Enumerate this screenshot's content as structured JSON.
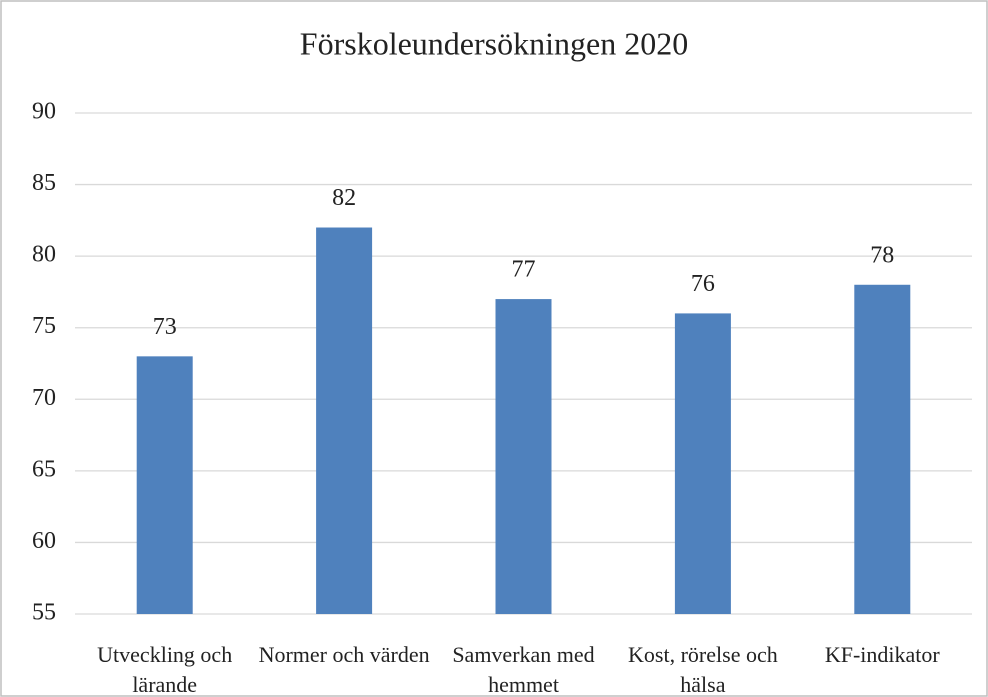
{
  "chart_data": {
    "type": "bar",
    "title": "Förskoleundersökningen 2020",
    "categories": [
      "Utveckling och lärande",
      "Normer och värden",
      "Samverkan med hemmet",
      "Kost, rörelse och hälsa",
      "KF-indikator"
    ],
    "values": [
      73,
      82,
      77,
      76,
      78
    ],
    "color": "#4f81bd",
    "ylim": [
      55,
      90
    ],
    "yticks": [
      55,
      60,
      65,
      70,
      75,
      80,
      85,
      90
    ],
    "grid": true
  }
}
